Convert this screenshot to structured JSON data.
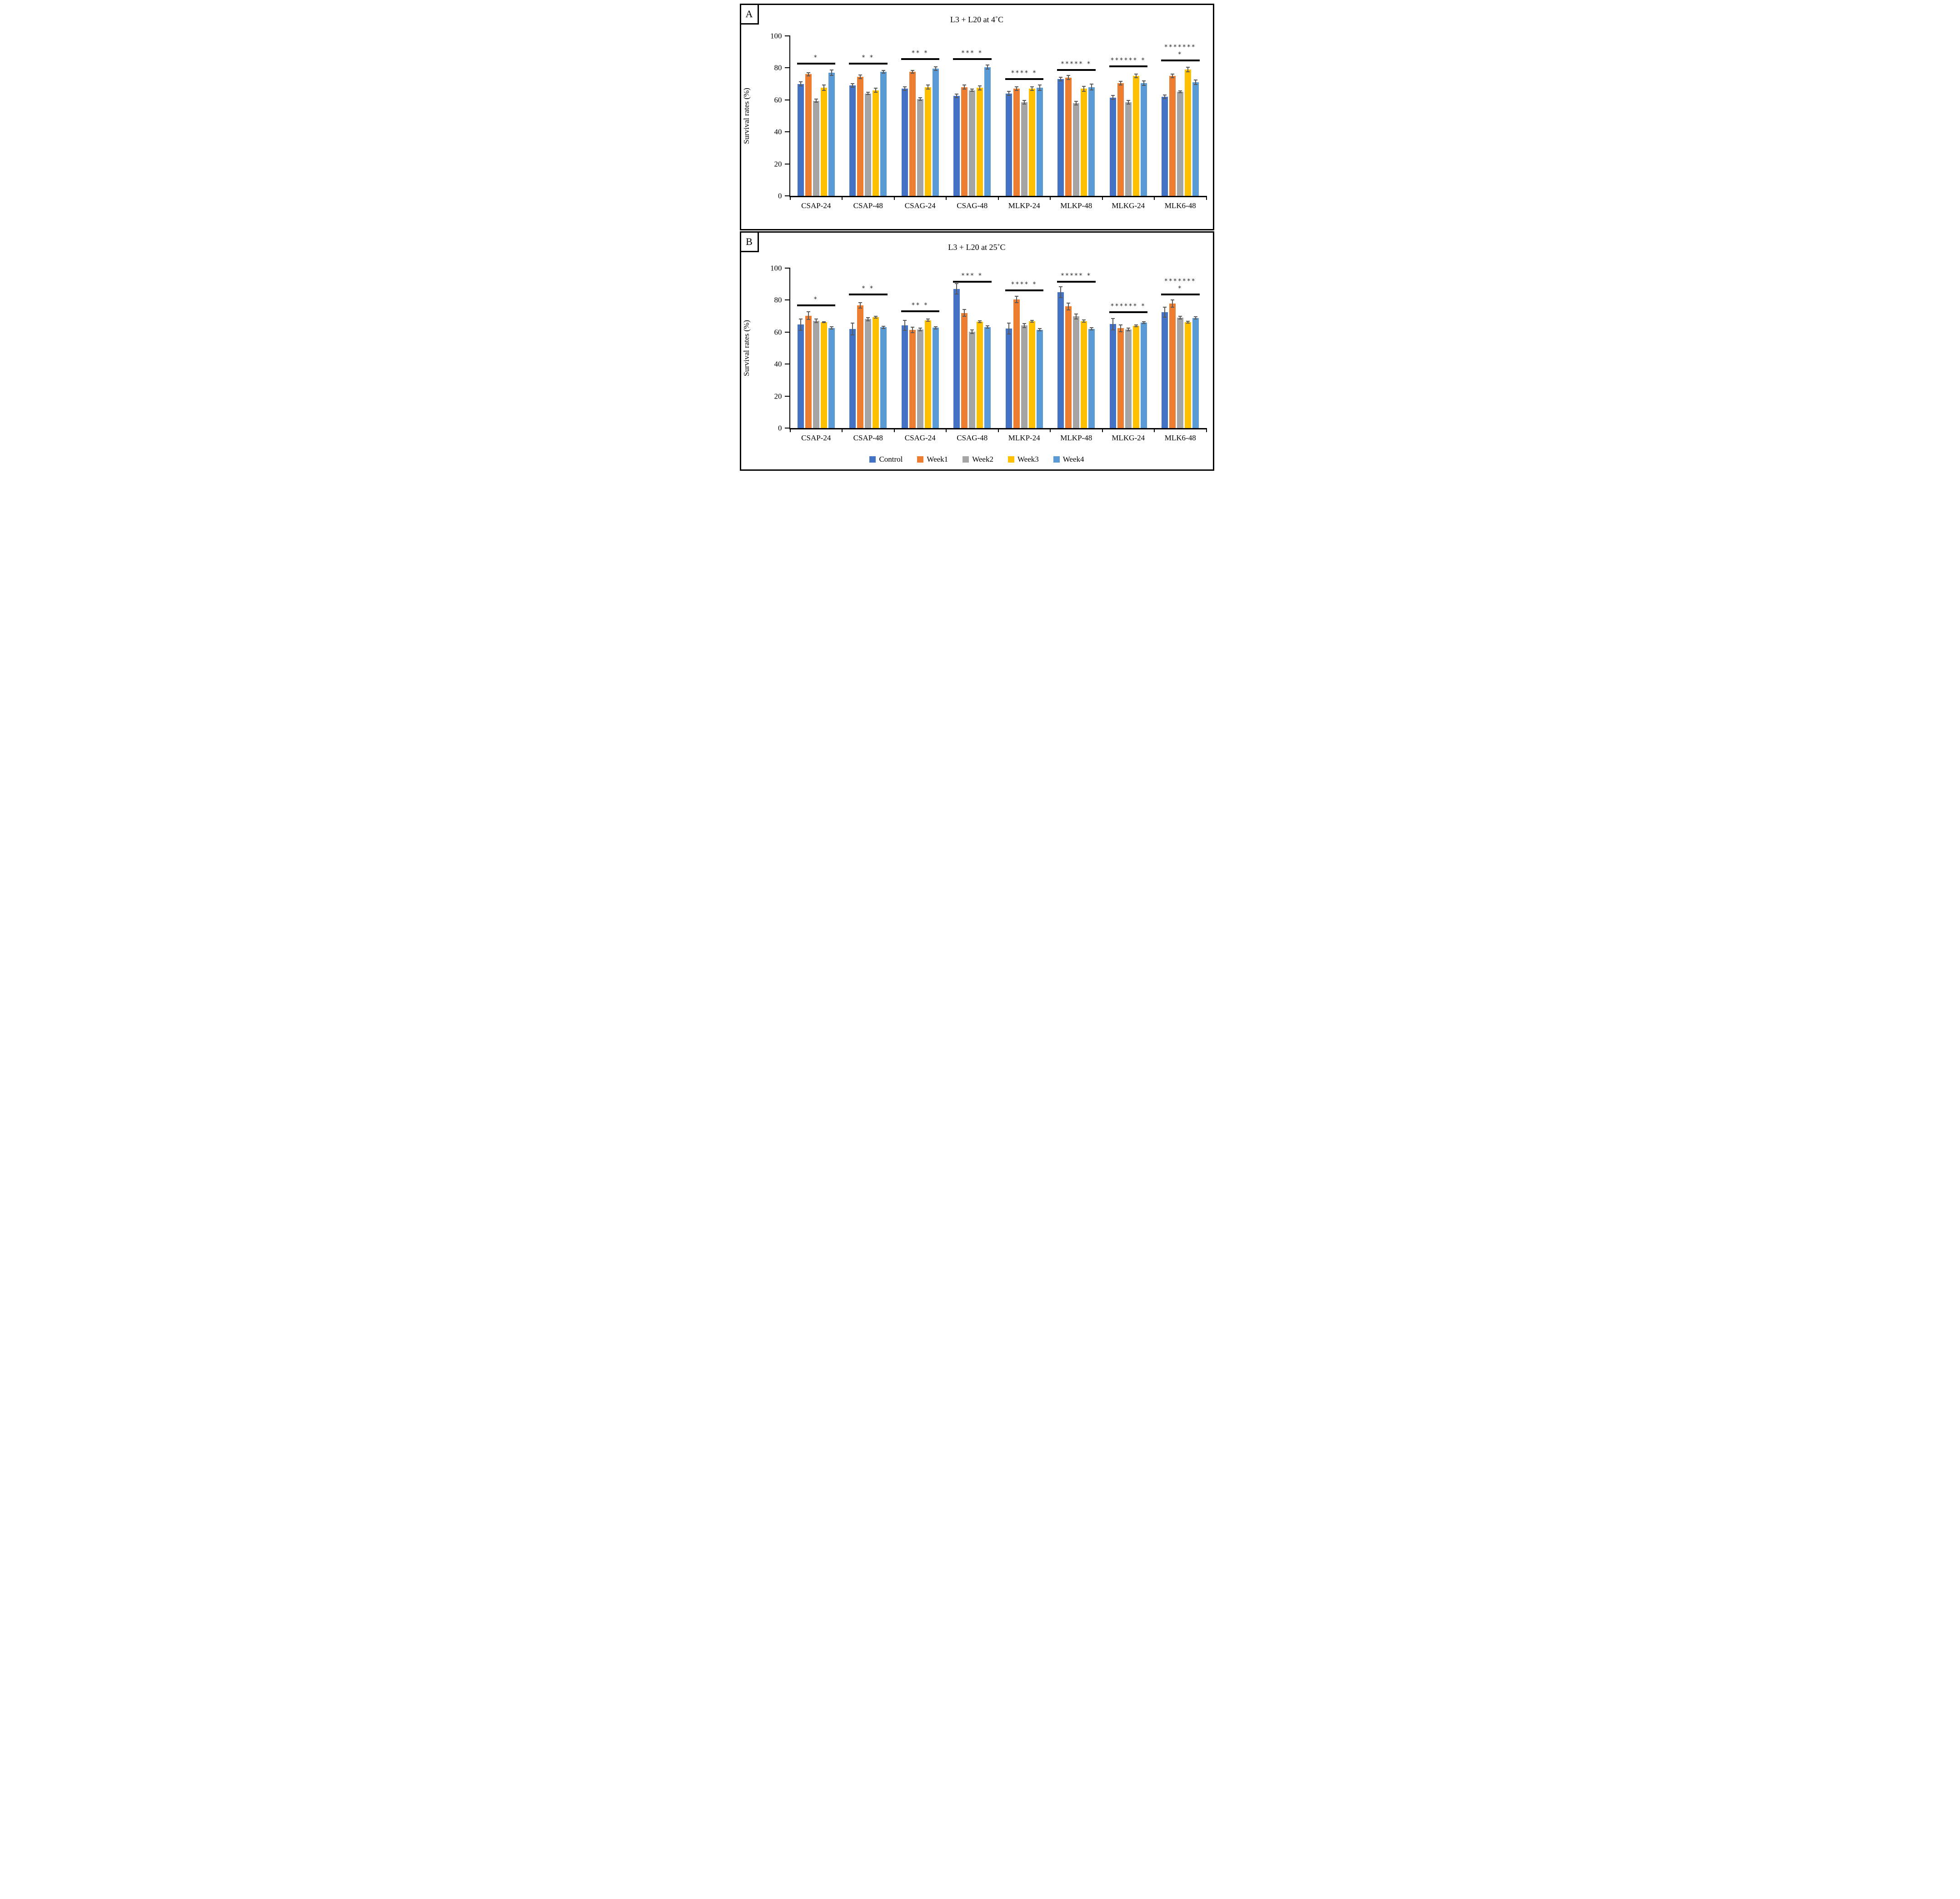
{
  "panels": {
    "tags": [
      "A",
      "B"
    ]
  },
  "legend": {
    "items": [
      {
        "label": "Control",
        "color": "#4472C4"
      },
      {
        "label": "Week1",
        "color": "#ED7D31"
      },
      {
        "label": "Week2",
        "color": "#A5A5A5"
      },
      {
        "label": "Week3",
        "color": "#FFC000"
      },
      {
        "label": "Week4",
        "color": "#5B9BD5"
      }
    ],
    "position": "bottom-center"
  },
  "colors": {
    "axis": "#000000",
    "error_bar": "#595959",
    "significance_line": "#000000",
    "significance_text": "#262626"
  },
  "chart_data": [
    {
      "type": "bar",
      "panel": "A",
      "title": "L3 + L20 at 4˚C",
      "xlabel": "",
      "ylabel": "Survival rates (%)",
      "ylim": [
        0,
        100
      ],
      "yticks": [
        0,
        20,
        40,
        60,
        80,
        100
      ],
      "grid": false,
      "legend_position": "none",
      "categories": [
        "CSAP-24",
        "CSAP-48",
        "CSAG-24",
        "CSAG-48",
        "MLKP-24",
        "MLKP-48",
        "MLKG-24",
        "MLK6-48"
      ],
      "series": [
        {
          "name": "Control",
          "color": "#4472C4",
          "values": [
            70,
            69,
            67,
            62.5,
            64,
            73,
            61.5,
            62
          ],
          "errors": [
            1.5,
            1.5,
            1.5,
            1.5,
            1.5,
            1.5,
            1.5,
            1.5
          ]
        },
        {
          "name": "Week1",
          "color": "#ED7D31",
          "values": [
            76,
            74.5,
            77.5,
            68,
            67,
            74,
            70.5,
            75
          ],
          "errors": [
            1.2,
            1.5,
            1.2,
            1.5,
            1.5,
            1.5,
            1.5,
            1.5
          ]
        },
        {
          "name": "Week2",
          "color": "#A5A5A5",
          "values": [
            59.5,
            64,
            60.5,
            66,
            58.5,
            58,
            58.5,
            65
          ],
          "errors": [
            1.2,
            1.0,
            1.2,
            1.0,
            1.5,
            1.5,
            1.5,
            0.8
          ]
        },
        {
          "name": "Week3",
          "color": "#FFC000",
          "values": [
            67.5,
            66,
            68,
            67.5,
            67,
            67,
            75,
            79
          ],
          "errors": [
            2.0,
            1.5,
            1.5,
            1.5,
            1.5,
            1.8,
            1.5,
            1.8
          ]
        },
        {
          "name": "Week4",
          "color": "#5B9BD5",
          "values": [
            77,
            77.5,
            79.5,
            80.5,
            67.5,
            68,
            70.5,
            71
          ],
          "errors": [
            2.0,
            1.2,
            1.5,
            1.5,
            2.0,
            2.2,
            1.8,
            1.8
          ]
        }
      ],
      "significance": [
        {
          "text": "*",
          "y": 82
        },
        {
          "text": "* *",
          "y": 82
        },
        {
          "text": "** *",
          "y": 85
        },
        {
          "text": "*** *",
          "y": 85
        },
        {
          "text": "**** *",
          "y": 72.5
        },
        {
          "text": "***** *",
          "y": 78
        },
        {
          "text": "****** *",
          "y": 80.5
        },
        {
          "text": "******* *",
          "y": 84
        }
      ]
    },
    {
      "type": "bar",
      "panel": "B",
      "title": "L3 + L20 at 25˚C",
      "xlabel": "",
      "ylabel": "Survival rates (%)",
      "ylim": [
        0,
        100
      ],
      "yticks": [
        0,
        20,
        40,
        60,
        80,
        100
      ],
      "grid": false,
      "legend_position": "bottom",
      "categories": [
        "CSAP-24",
        "CSAP-48",
        "CSAG-24",
        "CSAG-48",
        "MLKP-24",
        "MLKP-48",
        "MLKG-24",
        "MLK6-48"
      ],
      "series": [
        {
          "name": "Control",
          "color": "#4472C4",
          "values": [
            64.7,
            62,
            64.2,
            87,
            62.2,
            85,
            65,
            72.5
          ],
          "errors": [
            3.8,
            4.0,
            3.5,
            3.5,
            3.7,
            3.7,
            3.8,
            3.5
          ]
        },
        {
          "name": "Week1",
          "color": "#ED7D31",
          "values": [
            70.3,
            76.8,
            61.5,
            72,
            80.5,
            76,
            62.4,
            77.8
          ],
          "errors": [
            2.7,
            2.0,
            2.0,
            2.3,
            2.3,
            2.3,
            2.5,
            2.5
          ]
        },
        {
          "name": "Week2",
          "color": "#A5A5A5",
          "values": [
            67.1,
            68.1,
            61.6,
            60.2,
            64.1,
            69.8,
            61.7,
            69
          ],
          "errors": [
            1.5,
            1.2,
            1.2,
            1.5,
            1.5,
            1.8,
            1.2,
            1.2
          ]
        },
        {
          "name": "Week3",
          "color": "#FFC000",
          "values": [
            66.1,
            69.4,
            67.4,
            66.5,
            66.8,
            66.9,
            64,
            66.2
          ],
          "errors": [
            0.6,
            0.8,
            1.0,
            0.8,
            0.8,
            1.0,
            0.8,
            0.8
          ]
        },
        {
          "name": "Week4",
          "color": "#5B9BD5",
          "values": [
            62.6,
            63,
            62.7,
            63.2,
            61.5,
            62,
            65.9,
            68.8
          ],
          "errors": [
            1.0,
            1.0,
            1.0,
            1.0,
            1.0,
            1.0,
            0.8,
            1.0
          ]
        }
      ],
      "significance": [
        {
          "text": "*",
          "y": 76
        },
        {
          "text": "* *",
          "y": 83
        },
        {
          "text": "** *",
          "y": 72.5
        },
        {
          "text": "*** *",
          "y": 91
        },
        {
          "text": "**** *",
          "y": 85.5
        },
        {
          "text": "***** *",
          "y": 91
        },
        {
          "text": "****** *",
          "y": 72
        },
        {
          "text": "******* *",
          "y": 83
        }
      ]
    }
  ]
}
